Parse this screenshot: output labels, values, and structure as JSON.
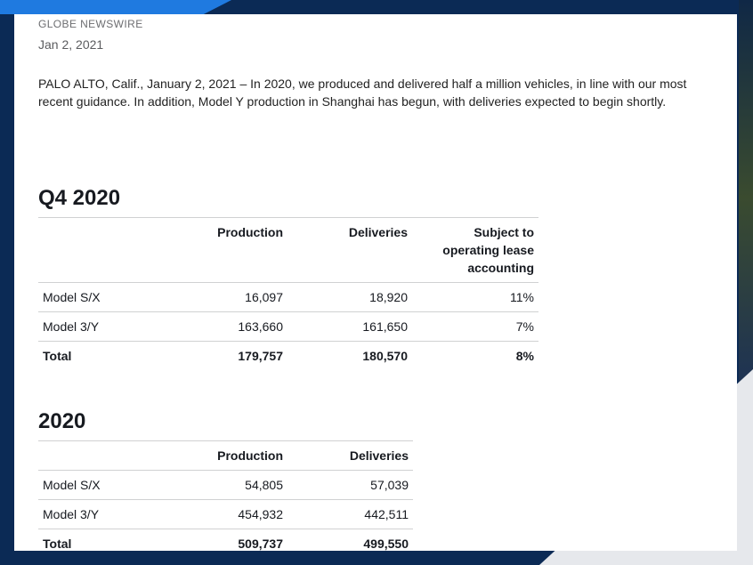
{
  "article": {
    "source": "GLOBE NEWSWIRE",
    "date": "Jan 2, 2021",
    "intro": "PALO ALTO, Calif., January 2, 2021 – In 2020, we produced and delivered half a million vehicles, in line with our most recent guidance. In addition, Model Y production in Shanghai has begun, with deliveries expected to begin shortly."
  },
  "q4": {
    "title": "Q4 2020",
    "headers": [
      "",
      "Production",
      "Deliveries",
      "Subject to operating lease accounting"
    ],
    "rows": [
      {
        "label": "Model S/X",
        "production": "16,097",
        "deliveries": "18,920",
        "lease": "11%"
      },
      {
        "label": "Model 3/Y",
        "production": "163,660",
        "deliveries": "161,650",
        "lease": "7%"
      },
      {
        "label": "Total",
        "production": "179,757",
        "deliveries": "180,570",
        "lease": "8%"
      }
    ]
  },
  "year": {
    "title": "2020",
    "headers": [
      "",
      "Production",
      "Deliveries"
    ],
    "rows": [
      {
        "label": "Model S/X",
        "production": "54,805",
        "deliveries": "57,039"
      },
      {
        "label": "Model 3/Y",
        "production": "454,932",
        "deliveries": "442,511"
      },
      {
        "label": "Total",
        "production": "509,737",
        "deliveries": "499,550"
      }
    ]
  },
  "colors": {
    "background": "#0b2a55",
    "accent_stripe": "#1f7ae0",
    "paper": "#ffffff",
    "text": "#171a20"
  }
}
